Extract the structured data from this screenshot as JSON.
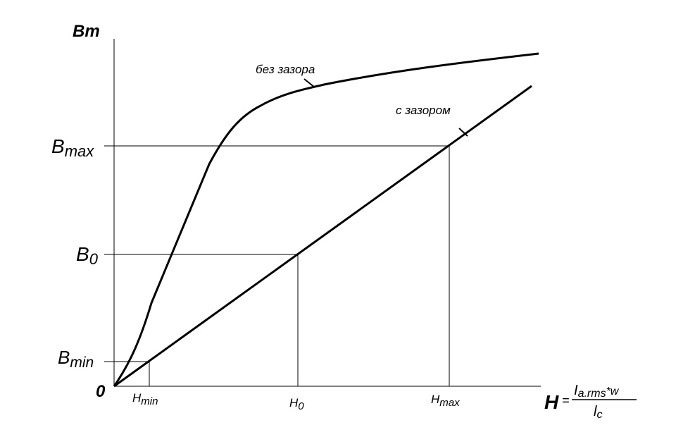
{
  "axes": {
    "y_label": "Bm",
    "origin": "0",
    "y_marks": [
      {
        "base": "B",
        "sub": "max"
      },
      {
        "base": "B",
        "sub": "0"
      },
      {
        "base": "B",
        "sub": "min"
      }
    ],
    "x_marks": [
      {
        "base": "H",
        "sub": "min"
      },
      {
        "base": "H",
        "sub": "0"
      },
      {
        "base": "H",
        "sub": "max"
      }
    ],
    "x_label": {
      "symbol": "H",
      "equals": "=",
      "numerator": {
        "base": "I",
        "sub": "a.rms",
        "rest": "*w"
      },
      "denominator": {
        "base": "l",
        "sub": "c"
      }
    }
  },
  "curves": [
    {
      "label": "без зазора"
    },
    {
      "label": "с зазором"
    }
  ]
}
